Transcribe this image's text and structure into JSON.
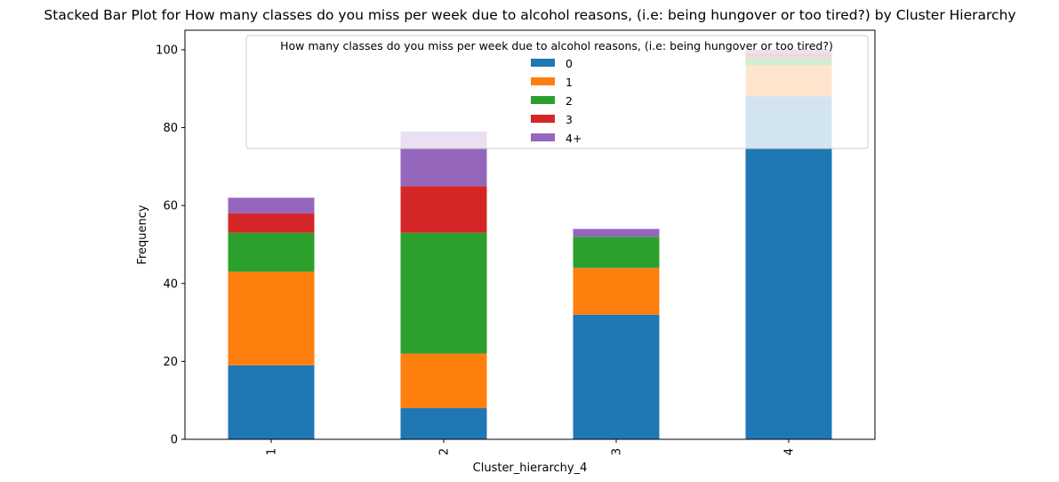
{
  "chart_data": {
    "type": "bar",
    "stacked": true,
    "title": "Stacked Bar Plot for How many classes do you miss per week due to alcohol reasons, (i.e: being hungover or too tired?) by Cluster Hierarchy",
    "xlabel": "Cluster_hierarchy_4",
    "ylabel": "Frequency",
    "categories": [
      "1",
      "2",
      "3",
      "4"
    ],
    "ylim": [
      0,
      105
    ],
    "yticks": [
      0,
      20,
      40,
      60,
      80,
      100
    ],
    "grid": false,
    "legend": {
      "title": "How many classes do you miss per week due to alcohol reasons, (i.e: being hungover or too tired?)",
      "placement": "top-right"
    },
    "series": [
      {
        "name": "0",
        "color": "#1f77b4",
        "values": [
          19,
          8,
          32,
          88
        ]
      },
      {
        "name": "1",
        "color": "#ff7f0e",
        "values": [
          24,
          14,
          12,
          8
        ]
      },
      {
        "name": "2",
        "color": "#2ca02c",
        "values": [
          10,
          31,
          8,
          2
        ]
      },
      {
        "name": "3",
        "color": "#d62728",
        "values": [
          5,
          12,
          0,
          1
        ]
      },
      {
        "name": "4+",
        "color": "#9467bd",
        "values": [
          4,
          14,
          2,
          1
        ]
      }
    ]
  }
}
